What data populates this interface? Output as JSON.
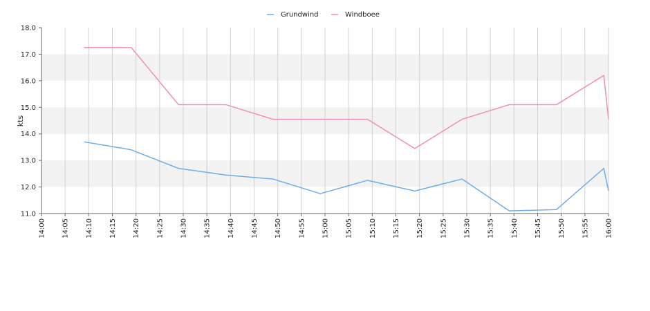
{
  "chart_data": {
    "type": "line",
    "ylabel": "kts",
    "xlabel": "",
    "ylim": [
      11.0,
      18.0
    ],
    "y_ticks": [
      "11.0",
      "12.0",
      "13.0",
      "14.0",
      "15.0",
      "16.0",
      "17.0",
      "18.0"
    ],
    "x_ticks": [
      "14:00",
      "14:05",
      "14:10",
      "14:15",
      "14:20",
      "14:25",
      "14:30",
      "14:35",
      "14:40",
      "14:45",
      "14:50",
      "14:55",
      "15:00",
      "15:05",
      "15:10",
      "15:15",
      "15:20",
      "15:25",
      "15:30",
      "15:35",
      "15:40",
      "15:45",
      "15:50",
      "15:55",
      "16:00"
    ],
    "xlim": [
      "14:00",
      "16:00"
    ],
    "grid": true,
    "legend_position": "top-center",
    "series": [
      {
        "name": "Grundwind",
        "color": "#6aaeea",
        "points": [
          [
            "14:09",
            13.7
          ],
          [
            "14:19",
            13.4
          ],
          [
            "14:29",
            12.7
          ],
          [
            "14:39",
            12.45
          ],
          [
            "14:49",
            12.3
          ],
          [
            "14:59",
            11.75
          ],
          [
            "15:09",
            12.25
          ],
          [
            "15:19",
            11.85
          ],
          [
            "15:29",
            12.3
          ],
          [
            "15:39",
            11.1
          ],
          [
            "15:49",
            11.15
          ],
          [
            "15:59",
            12.7
          ],
          [
            "16:00",
            11.85
          ]
        ]
      },
      {
        "name": "Windboee",
        "color": "#f08cb9",
        "points": [
          [
            "14:09",
            17.25
          ],
          [
            "14:19",
            17.25
          ],
          [
            "14:29",
            15.1
          ],
          [
            "14:39",
            15.1
          ],
          [
            "14:49",
            14.55
          ],
          [
            "14:59",
            14.55
          ],
          [
            "15:09",
            14.55
          ],
          [
            "15:19",
            13.45
          ],
          [
            "15:29",
            14.55
          ],
          [
            "15:39",
            15.1
          ],
          [
            "15:49",
            15.1
          ],
          [
            "15:59",
            16.2
          ],
          [
            "16:00",
            14.55
          ]
        ]
      }
    ]
  }
}
